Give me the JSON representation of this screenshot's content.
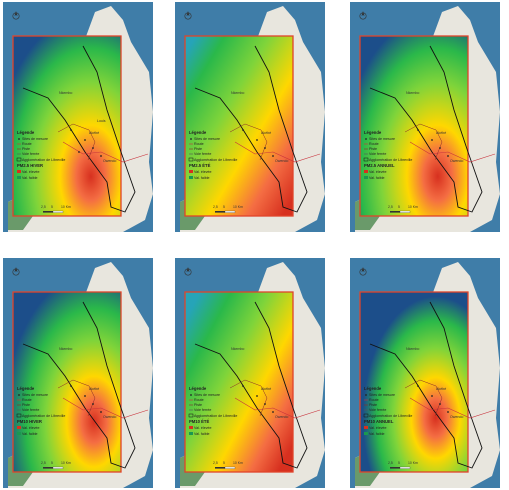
{
  "panels": [
    {
      "legend": {
        "title": "Légende",
        "station": "Sites de mesure",
        "item2": "Route",
        "item3": "Piste",
        "item4": "Voie ferrée",
        "boundary": "Agglomération de Libreville",
        "layer": "PM2.5 HIVER",
        "high": "Val. élevée",
        "low": "Val. faible"
      }
    },
    {
      "legend": {
        "title": "Légende",
        "station": "Sites de mesure",
        "item2": "Route",
        "item3": "Piste",
        "item4": "Voie ferrée",
        "boundary": "Agglomération de Libreville",
        "layer": "PM2.5 ÉTÉ",
        "high": "Val. élevée",
        "low": "Val. faible"
      }
    },
    {
      "legend": {
        "title": "Légende",
        "station": "Sites de mesure",
        "item2": "Route",
        "item3": "Piste",
        "item4": "Voie ferrée",
        "boundary": "Agglomération de Libreville",
        "layer": "PM2.5 ANNUEL",
        "high": "Val. élevée",
        "low": "Val. faible"
      }
    },
    {
      "legend": {
        "title": "Légende",
        "station": "Sites de mesure",
        "item2": "Route",
        "item3": "Piste",
        "item4": "Voie ferrée",
        "boundary": "Agglomération de Libreville",
        "layer": "PM10 HIVER",
        "high": "Val. élevée",
        "low": "Val. faible"
      }
    },
    {
      "legend": {
        "title": "Légende",
        "station": "Sites de mesure",
        "item2": "Route",
        "item3": "Piste",
        "item4": "Voie ferrée",
        "boundary": "Agglomération de Libreville",
        "layer": "PM10 ÉTÉ",
        "high": "Val. élevée",
        "low": "Val. faible"
      }
    },
    {
      "legend": {
        "title": "Légende",
        "station": "Sites de mesure",
        "item2": "Route",
        "item3": "Piste",
        "item4": "Voie ferrée",
        "boundary": "Agglomération de Libreville",
        "layer": "PM10 ANNUEL",
        "high": "Val. élevée",
        "low": "Val. faible"
      }
    }
  ],
  "places": [
    "Nkembo",
    "Akébé",
    "Louis",
    "Owendo",
    "Glass",
    "Ntoum",
    "Nzeng",
    "Okala"
  ],
  "scale": {
    "left": "2,5",
    "mid": "5",
    "right": "10 Km"
  },
  "colors": {
    "water": "#3f7da8",
    "land": "#e8e6de",
    "high": "#d7301f",
    "mid": "#ffd700",
    "low": "#1a9850",
    "deep": "#1c4e8a"
  }
}
